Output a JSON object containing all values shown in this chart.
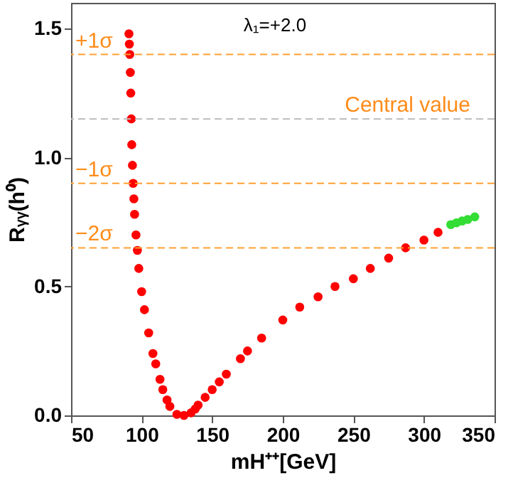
{
  "chart_data": {
    "type": "scatter",
    "xlabel": "mH⁺⁺[GeV]",
    "ylabel": "Rᵧᵧ(h⁰)",
    "annotations": [
      "λ₁=+2.0"
    ],
    "xlim": [
      50,
      350
    ],
    "ylim": [
      0,
      1.6
    ],
    "xticks": [
      50,
      100,
      150,
      200,
      250,
      300,
      350
    ],
    "yticks": [
      {
        "value": 0,
        "label": "0.0"
      },
      {
        "value": 0.5,
        "label": "0.5"
      },
      {
        "value": 1.0,
        "label": "1.0"
      },
      {
        "value": 1.5,
        "label": "1.5"
      }
    ],
    "grid": false,
    "marker": "circle",
    "series": [
      {
        "color": "#ff0000",
        "x": [
          91,
          91.3,
          91.6,
          92,
          92.3,
          92.7,
          93,
          93.5,
          94,
          94.5,
          95,
          96,
          97,
          98,
          100,
          102,
          105,
          108,
          110,
          113,
          115,
          118,
          120,
          125,
          130,
          135,
          138,
          140,
          145,
          150,
          155,
          160,
          170,
          175,
          185,
          200,
          212,
          225,
          237,
          250,
          262,
          275,
          287,
          300,
          310
        ],
        "values": [
          1.48,
          1.44,
          1.4,
          1.33,
          1.25,
          1.15,
          1.05,
          0.97,
          0.9,
          0.84,
          0.78,
          0.7,
          0.64,
          0.57,
          0.48,
          0.41,
          0.32,
          0.24,
          0.2,
          0.14,
          0.1,
          0.06,
          0.035,
          0.004,
          0.0,
          0.01,
          0.025,
          0.04,
          0.07,
          0.1,
          0.13,
          0.16,
          0.22,
          0.25,
          0.3,
          0.37,
          0.42,
          0.46,
          0.5,
          0.53,
          0.57,
          0.61,
          0.65,
          0.68,
          0.71
        ]
      },
      {
        "color": "#33dd33",
        "x": [
          319,
          323,
          327,
          331,
          336
        ],
        "values": [
          0.74,
          0.747,
          0.754,
          0.76,
          0.77
        ]
      }
    ],
    "ref_lines": [
      {
        "axis": "y",
        "value": 1.4,
        "label": "+1σ",
        "color": "#ffa033",
        "line_style": "dashed"
      },
      {
        "axis": "y",
        "value": 1.15,
        "label": "Central value",
        "color": "#bbbbbb",
        "line_style": "dashed"
      },
      {
        "axis": "y",
        "value": 0.9,
        "label": "−1σ",
        "color": "#ffa033",
        "line_style": "dashed"
      },
      {
        "axis": "y",
        "value": 0.65,
        "label": "−2σ",
        "color": "#ffa033",
        "line_style": "dashed"
      }
    ]
  }
}
